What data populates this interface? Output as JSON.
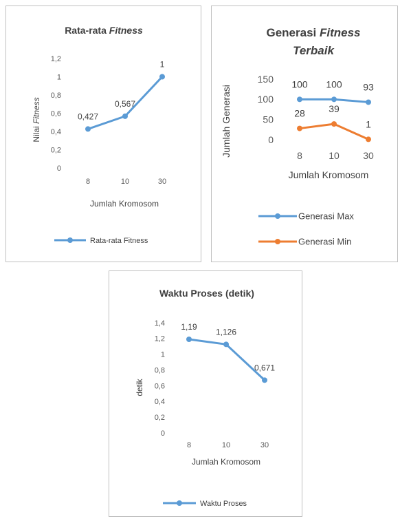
{
  "chart_data": [
    {
      "type": "line",
      "title": "Rata-rata Fitness",
      "title_parts": [
        "Rata-rata ",
        "Fitness"
      ],
      "ylabel": "Nilai Fitness",
      "ylabel_parts": [
        "Nilai ",
        "Fitness"
      ],
      "xlabel": "Jumlah Kromosom",
      "categories": [
        "8",
        "10",
        "30"
      ],
      "ylim": [
        0,
        1.2
      ],
      "yticks": [
        "0",
        "0,2",
        "0,4",
        "0,6",
        "0,8",
        "1",
        "1,2"
      ],
      "legend_position": "bottom",
      "grid": false,
      "series": [
        {
          "name": "Rata-rata Fitness",
          "values": [
            0.427,
            0.567,
            1
          ],
          "labels": [
            "0,427",
            "0,567",
            "1"
          ],
          "color": "#5b9bd5"
        }
      ]
    },
    {
      "type": "line",
      "title": "Generasi Fitness Terbaik",
      "title_parts": [
        "Generasi ",
        "Fitness",
        "Terbaik"
      ],
      "ylabel": "Jumlah Generasi",
      "xlabel": "Jumlah Kromosom",
      "categories": [
        "8",
        "10",
        "30"
      ],
      "ylim": [
        0,
        150
      ],
      "yticks": [
        "0",
        "50",
        "100",
        "150"
      ],
      "legend_position": "bottom",
      "grid": false,
      "series": [
        {
          "name": "Generasi Max",
          "values": [
            100,
            100,
            93
          ],
          "labels": [
            "100",
            "100",
            "93"
          ],
          "color": "#5b9bd5"
        },
        {
          "name": "Generasi Min",
          "values": [
            28,
            39,
            1
          ],
          "labels": [
            "28",
            "39",
            "1"
          ],
          "color": "#ed7d31"
        }
      ]
    },
    {
      "type": "line",
      "title": "Waktu Proses (detik)",
      "ylabel": "detik",
      "xlabel": "Jumlah Kromosom",
      "categories": [
        "8",
        "10",
        "30"
      ],
      "ylim": [
        0,
        1.4
      ],
      "yticks": [
        "0",
        "0,2",
        "0,4",
        "0,6",
        "0,8",
        "1",
        "1,2",
        "1,4"
      ],
      "legend_position": "bottom",
      "grid": false,
      "series": [
        {
          "name": "Waktu Proses",
          "values": [
            1.19,
            1.126,
            0.671
          ],
          "labels": [
            "1,19",
            "1,126",
            "0,671"
          ],
          "color": "#5b9bd5"
        }
      ]
    }
  ]
}
